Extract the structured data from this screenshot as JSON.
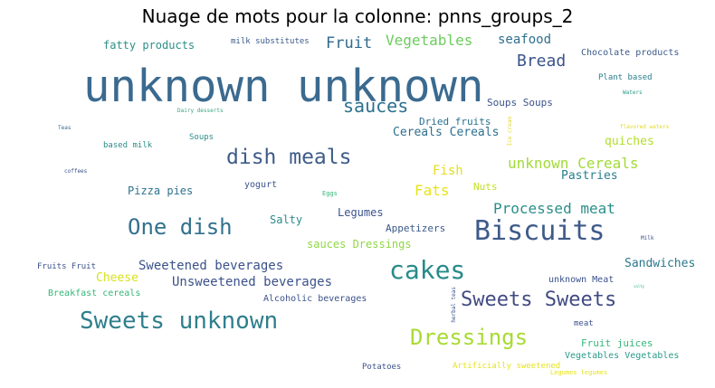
{
  "title": "Nuage de mots pour la colonne: pnns_groups_2",
  "colors": {
    "dark_blue": "#3b528b",
    "blue": "#31688e",
    "teal": "#21918c",
    "teal2": "#2a788e",
    "green": "#35b779",
    "lime": "#90d743",
    "yellow": "#c2df23",
    "gold": "#e7e419",
    "purple": "#472d7b"
  },
  "words": [
    "unknown unknown",
    "Biscuits",
    "cakes",
    "Sweets unknown",
    "Dressings",
    "One dish",
    "dish meals",
    "Sweets Sweets",
    "sauces",
    "Bread",
    "Fruit",
    "Vegetables",
    "seafood",
    "fatty products",
    "milk substitutes",
    "Chocolate products",
    "Plant based",
    "Waters",
    "Dairy desserts",
    "Teas",
    "Soups Soups",
    "Dried fruits",
    "Ice cream",
    "flavored waters",
    "Cereals Cereals",
    "based milk",
    "Soups",
    "quiches",
    "unknown Cereals",
    "Fish",
    "Pastries",
    "coffees",
    "yogurt",
    "Fats",
    "Nuts",
    "Pizza pies",
    "Eggs",
    "Processed meat",
    "Legumes",
    "Salty",
    "Appetizers",
    "sauces Dressings",
    "Milk",
    "Sweetened beverages",
    "Fruits Fruit",
    "Cheese",
    "Sandwiches",
    "Unsweetened beverages",
    "unknown Meat",
    "Breakfast cereals",
    "Alcoholic beverages",
    "herbal teas",
    "meat",
    "Fruit juices",
    "Vegetables Vegetables",
    "Potatoes",
    "Artificially sweetened",
    "Legumes legumes",
    "salty"
  ]
}
